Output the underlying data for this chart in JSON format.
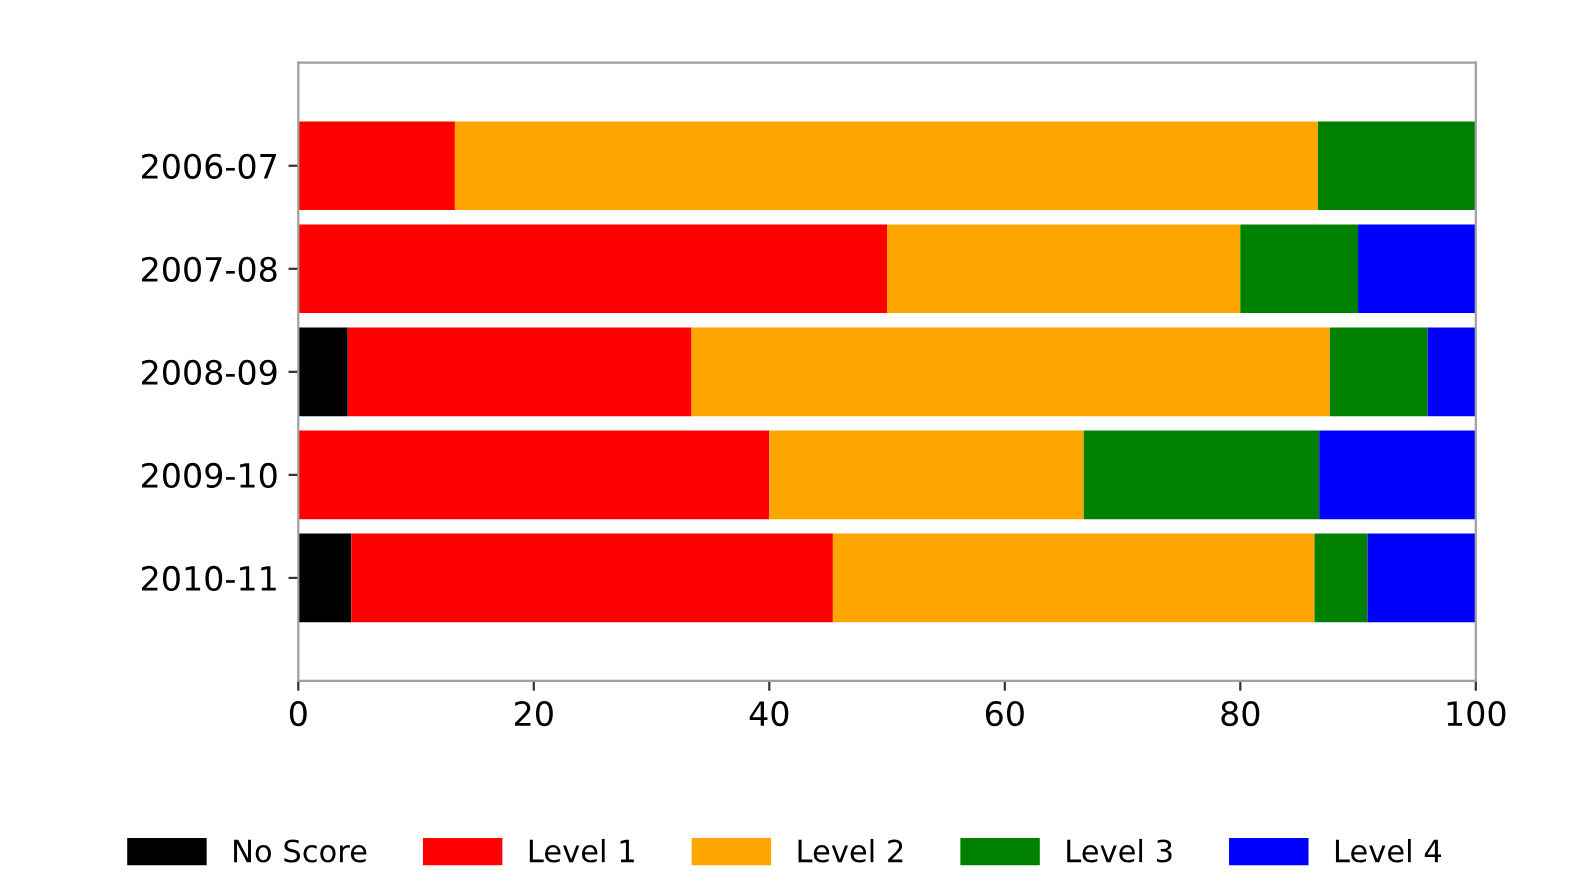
{
  "chart_data": {
    "type": "bar",
    "orientation": "horizontal",
    "stacked": true,
    "categories": [
      "2006-07",
      "2007-08",
      "2008-09",
      "2009-10",
      "2010-11"
    ],
    "series": [
      {
        "name": "No Score",
        "color": "#000000",
        "values": [
          0,
          0,
          4.2,
          0,
          4.5
        ]
      },
      {
        "name": "Level 1",
        "color": "#ff0000",
        "values": [
          13.3,
          50,
          29.2,
          40,
          40.9
        ]
      },
      {
        "name": "Level 2",
        "color": "#ffa500",
        "values": [
          73.3,
          30,
          54.2,
          26.7,
          40.9
        ]
      },
      {
        "name": "Level 3",
        "color": "#008000",
        "values": [
          13.4,
          10,
          8.3,
          20,
          4.5
        ]
      },
      {
        "name": "Level 4",
        "color": "#0000ff",
        "values": [
          0,
          10,
          4.1,
          13.3,
          9.2
        ]
      }
    ],
    "xlim": [
      0,
      100
    ],
    "xticks": [
      0,
      20,
      40,
      60,
      80,
      100
    ],
    "grid": false,
    "legend": "bottom"
  }
}
